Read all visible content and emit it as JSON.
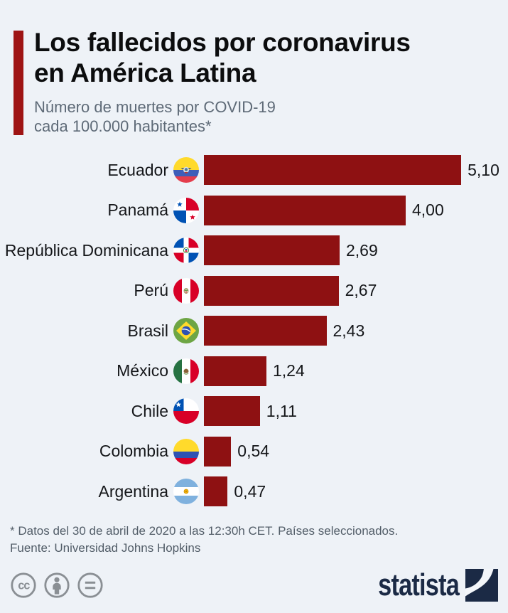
{
  "header": {
    "title_line1": "Los fallecidos por coronavirus",
    "title_line2": "en América Latina",
    "subtitle_line1": "Número de muertes por COVID-19",
    "subtitle_line2": "cada 100.000 habitantes*"
  },
  "chart_data": {
    "type": "bar",
    "orientation": "horizontal",
    "title": "Los fallecidos por coronavirus en América Latina",
    "subtitle": "Número de muertes por COVID-19 cada 100.000 habitantes*",
    "categories": [
      "Ecuador",
      "Panamá",
      "República Dominicana",
      "Perú",
      "Brasil",
      "México",
      "Chile",
      "Colombia",
      "Argentina"
    ],
    "values": [
      5.1,
      4.0,
      2.69,
      2.67,
      2.43,
      1.24,
      1.11,
      0.54,
      0.47
    ],
    "value_labels": [
      "5,10",
      "4,00",
      "2,69",
      "2,67",
      "2,43",
      "1,24",
      "1,11",
      "0,54",
      "0,47"
    ],
    "flags": [
      "ecuador",
      "panama",
      "dominican-republic",
      "peru",
      "brazil",
      "mexico",
      "chile",
      "colombia",
      "argentina"
    ],
    "xlim": [
      0,
      5.5
    ],
    "grid": false,
    "legend": false,
    "bar_color": "#8e1112"
  },
  "footer": {
    "note_line1": "* Datos del 30 de abril de 2020 a las 12:30h CET. Países seleccionados.",
    "note_line2": "Fuente: Universidad Johns Hopkins",
    "license_icons": [
      "cc",
      "attribution",
      "no-derivatives"
    ],
    "brand": "statista"
  },
  "colors": {
    "background": "#eef2f7",
    "bar": "#8e1112",
    "accent": "#9e1414",
    "title_text": "#0c0d0e",
    "subtitle_text": "#5e6a77",
    "footnote_text": "#525d68",
    "brand_navy": "#1b2a45",
    "cc_gray": "#8a8f94"
  }
}
